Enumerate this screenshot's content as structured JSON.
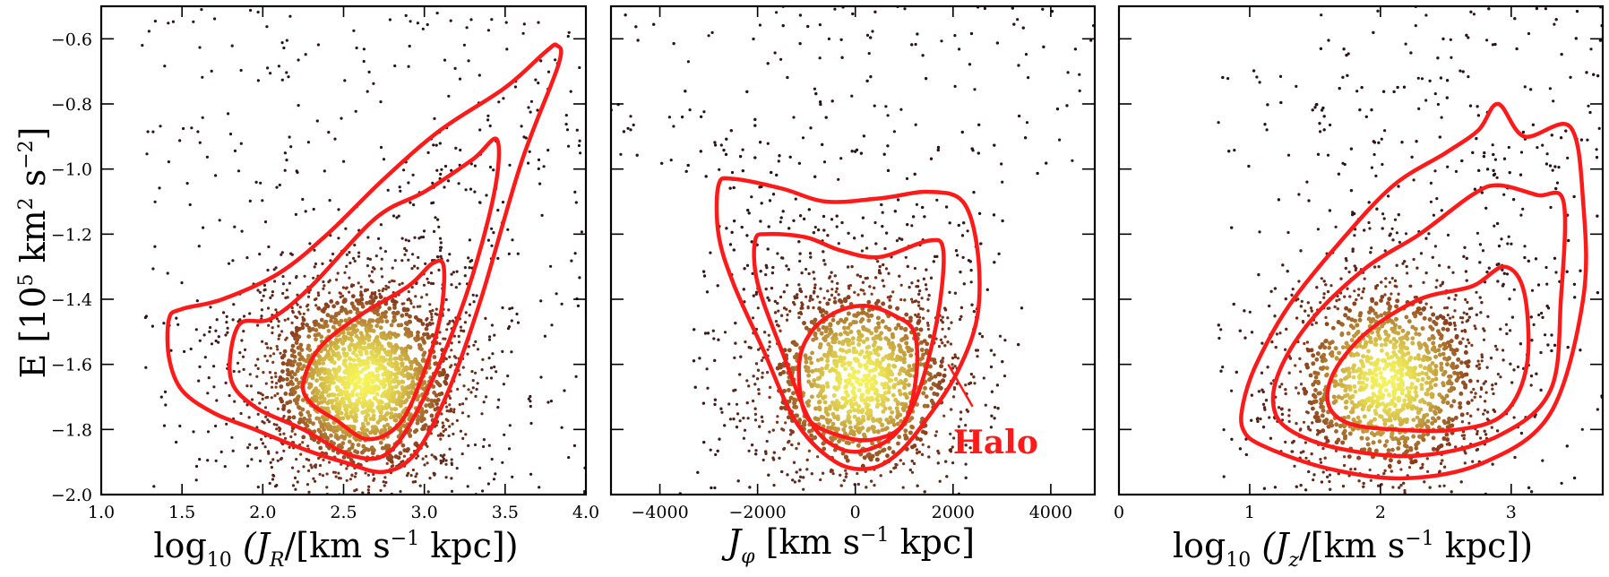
{
  "chart_data": [
    {
      "type": "scatter",
      "panel": "left",
      "xlabel_parts": [
        "log",
        "10",
        " (J",
        "R",
        "/[km s",
        "−1",
        " kpc])"
      ],
      "ylabel_parts": [
        "E [10",
        "5",
        " km",
        "2",
        " s",
        "−2",
        "]"
      ],
      "xlim": [
        1.0,
        4.0
      ],
      "ylim": [
        -2.0,
        -0.5
      ],
      "x_ticks": [
        1.0,
        1.5,
        2.0,
        2.5,
        3.0,
        3.5,
        4.0
      ],
      "x_tick_labels": [
        "1.0",
        "1.5",
        "2.0",
        "2.5",
        "3.0",
        "3.5",
        "4.0"
      ],
      "y_ticks": [
        -2.0,
        -1.8,
        -1.6,
        -1.4,
        -1.2,
        -1.0,
        -0.8,
        -0.6
      ],
      "y_tick_labels": [
        "−2.0",
        "−1.8",
        "−1.6",
        "−1.4",
        "−1.2",
        "−1.0",
        "−0.8",
        "−0.6"
      ],
      "density_peak": [
        2.62,
        -1.65
      ],
      "contours": [
        [
          [
            2.25,
            -1.66
          ],
          [
            2.35,
            -1.55
          ],
          [
            2.6,
            -1.45
          ],
          [
            2.9,
            -1.36
          ],
          [
            3.05,
            -1.29
          ],
          [
            3.12,
            -1.3
          ],
          [
            3.1,
            -1.45
          ],
          [
            3.0,
            -1.62
          ],
          [
            2.85,
            -1.78
          ],
          [
            2.65,
            -1.83
          ],
          [
            2.45,
            -1.77
          ],
          [
            2.3,
            -1.72
          ]
        ],
        [
          [
            1.8,
            -1.64
          ],
          [
            1.85,
            -1.48
          ],
          [
            2.05,
            -1.46
          ],
          [
            2.3,
            -1.36
          ],
          [
            2.7,
            -1.15
          ],
          [
            3.0,
            -1.07
          ],
          [
            3.3,
            -0.97
          ],
          [
            3.45,
            -0.91
          ],
          [
            3.43,
            -1.08
          ],
          [
            3.25,
            -1.4
          ],
          [
            3.0,
            -1.7
          ],
          [
            2.78,
            -1.87
          ],
          [
            2.55,
            -1.88
          ],
          [
            2.25,
            -1.8
          ],
          [
            1.95,
            -1.73
          ]
        ],
        [
          [
            1.42,
            -1.46
          ],
          [
            1.5,
            -1.43
          ],
          [
            1.75,
            -1.4
          ],
          [
            2.1,
            -1.32
          ],
          [
            2.4,
            -1.2
          ],
          [
            2.75,
            -1.03
          ],
          [
            3.1,
            -0.88
          ],
          [
            3.5,
            -0.75
          ],
          [
            3.75,
            -0.64
          ],
          [
            3.82,
            -0.62
          ],
          [
            3.83,
            -0.68
          ],
          [
            3.6,
            -0.98
          ],
          [
            3.35,
            -1.4
          ],
          [
            3.15,
            -1.68
          ],
          [
            2.95,
            -1.87
          ],
          [
            2.75,
            -1.93
          ],
          [
            2.5,
            -1.9
          ],
          [
            2.25,
            -1.86
          ],
          [
            1.95,
            -1.8
          ],
          [
            1.7,
            -1.75
          ],
          [
            1.5,
            -1.68
          ],
          [
            1.42,
            -1.58
          ]
        ]
      ]
    },
    {
      "type": "scatter",
      "panel": "middle",
      "xlabel_parts": [
        "J",
        "φ",
        " [km s",
        "−1",
        " kpc]"
      ],
      "xlim": [
        -5000,
        4900
      ],
      "ylim": [
        -2.0,
        -0.5
      ],
      "x_ticks": [
        -4000,
        -2000,
        0,
        2000,
        4000
      ],
      "x_tick_labels": [
        "−4000",
        "−2000",
        "0",
        "2000",
        "4000"
      ],
      "y_ticks": [
        -2.0,
        -1.8,
        -1.6,
        -1.4,
        -1.2,
        -1.0,
        -0.8,
        -0.6
      ],
      "density_peak": [
        100,
        -1.65
      ],
      "annotation": {
        "text": "Halo",
        "x": 2000,
        "y": -1.84,
        "arrow_from": [
          1900,
          -1.6
        ],
        "arrow_to": [
          2400,
          -1.73
        ]
      },
      "contours": [
        [
          [
            -1150,
            -1.6
          ],
          [
            -900,
            -1.5
          ],
          [
            -400,
            -1.44
          ],
          [
            200,
            -1.42
          ],
          [
            800,
            -1.45
          ],
          [
            1200,
            -1.5
          ],
          [
            1250,
            -1.63
          ],
          [
            1000,
            -1.78
          ],
          [
            400,
            -1.83
          ],
          [
            -300,
            -1.82
          ],
          [
            -1000,
            -1.76
          ]
        ],
        [
          [
            -2050,
            -1.22
          ],
          [
            -1800,
            -1.2
          ],
          [
            -1000,
            -1.21
          ],
          [
            -300,
            -1.25
          ],
          [
            500,
            -1.27
          ],
          [
            1500,
            -1.22
          ],
          [
            1800,
            -1.25
          ],
          [
            1700,
            -1.44
          ],
          [
            1350,
            -1.66
          ],
          [
            900,
            -1.8
          ],
          [
            300,
            -1.86
          ],
          [
            -300,
            -1.86
          ],
          [
            -900,
            -1.78
          ],
          [
            -1500,
            -1.56
          ],
          [
            -2000,
            -1.35
          ]
        ],
        [
          [
            -2800,
            -1.05
          ],
          [
            -2500,
            -1.03
          ],
          [
            -1500,
            -1.06
          ],
          [
            -600,
            -1.1
          ],
          [
            500,
            -1.09
          ],
          [
            1500,
            -1.07
          ],
          [
            2200,
            -1.1
          ],
          [
            2500,
            -1.25
          ],
          [
            2500,
            -1.45
          ],
          [
            2100,
            -1.62
          ],
          [
            1500,
            -1.76
          ],
          [
            900,
            -1.87
          ],
          [
            300,
            -1.92
          ],
          [
            -400,
            -1.9
          ],
          [
            -1200,
            -1.78
          ],
          [
            -1900,
            -1.55
          ],
          [
            -2500,
            -1.35
          ],
          [
            -2800,
            -1.2
          ]
        ]
      ]
    },
    {
      "type": "scatter",
      "panel": "right",
      "xlabel_parts": [
        "log",
        "10",
        " (J",
        "z",
        "/[km s",
        "−1",
        " kpc])"
      ],
      "xlim": [
        0.0,
        3.7
      ],
      "ylim": [
        -2.0,
        -0.5
      ],
      "x_ticks": [
        0,
        1,
        2,
        3
      ],
      "x_tick_labels": [
        "0",
        "1",
        "2",
        "3"
      ],
      "y_ticks": [
        -2.0,
        -1.8,
        -1.6,
        -1.4,
        -1.2,
        -1.0,
        -0.8,
        -0.6
      ],
      "density_peak": [
        2.05,
        -1.65
      ],
      "contours": [
        [
          [
            1.6,
            -1.72
          ],
          [
            1.65,
            -1.62
          ],
          [
            1.9,
            -1.5
          ],
          [
            2.3,
            -1.4
          ],
          [
            2.7,
            -1.36
          ],
          [
            2.95,
            -1.3
          ],
          [
            3.1,
            -1.38
          ],
          [
            3.12,
            -1.6
          ],
          [
            2.95,
            -1.75
          ],
          [
            2.6,
            -1.8
          ],
          [
            2.1,
            -1.8
          ],
          [
            1.75,
            -1.78
          ]
        ],
        [
          [
            1.18,
            -1.72
          ],
          [
            1.25,
            -1.6
          ],
          [
            1.5,
            -1.45
          ],
          [
            1.9,
            -1.3
          ],
          [
            2.3,
            -1.2
          ],
          [
            2.7,
            -1.08
          ],
          [
            2.9,
            -1.05
          ],
          [
            3.2,
            -1.08
          ],
          [
            3.4,
            -1.1
          ],
          [
            3.38,
            -1.4
          ],
          [
            3.3,
            -1.68
          ],
          [
            2.9,
            -1.82
          ],
          [
            2.3,
            -1.88
          ],
          [
            1.7,
            -1.86
          ],
          [
            1.3,
            -1.8
          ]
        ],
        [
          [
            0.95,
            -1.72
          ],
          [
            1.05,
            -1.6
          ],
          [
            1.3,
            -1.42
          ],
          [
            1.7,
            -1.22
          ],
          [
            2.1,
            -1.05
          ],
          [
            2.5,
            -0.95
          ],
          [
            2.75,
            -0.88
          ],
          [
            2.9,
            -0.8
          ],
          [
            3.1,
            -0.9
          ],
          [
            3.45,
            -0.87
          ],
          [
            3.55,
            -1.1
          ],
          [
            3.55,
            -1.4
          ],
          [
            3.3,
            -1.75
          ],
          [
            2.8,
            -1.9
          ],
          [
            2.2,
            -1.95
          ],
          [
            1.6,
            -1.92
          ],
          [
            1.1,
            -1.85
          ],
          [
            0.95,
            -1.8
          ]
        ]
      ]
    }
  ],
  "annotation_text": "Halo",
  "colors": {
    "contour": "#ff1a1a",
    "density_low": "#2a1318",
    "density_mid": "#8a3a1c",
    "density_high": "#f5f35a"
  }
}
